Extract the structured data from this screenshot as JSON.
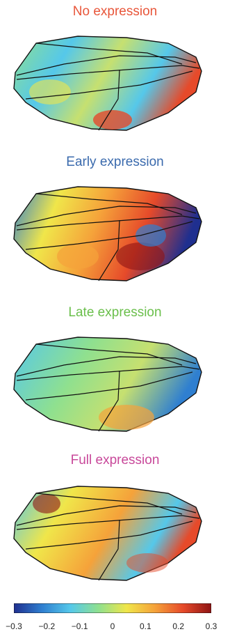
{
  "panels": [
    {
      "title": "No expression",
      "title_color": "#e8563a"
    },
    {
      "title": "Early expression",
      "title_color": "#3a6aad"
    },
    {
      "title": "Late expression",
      "title_color": "#6abf4b"
    },
    {
      "title": "Full expression",
      "title_color": "#c8489a"
    }
  ],
  "colorbar": {
    "ticks": [
      "−0.3",
      "−0.2",
      "−0.1",
      "0",
      "0.1",
      "0.2",
      "0.3"
    ],
    "min": -0.3,
    "max": 0.3,
    "colormap": [
      "#1f2f8f",
      "#2f7fd0",
      "#55c8ea",
      "#8fe08f",
      "#f0e64a",
      "#f5a23a",
      "#e64a2a",
      "#8e1414"
    ]
  }
}
